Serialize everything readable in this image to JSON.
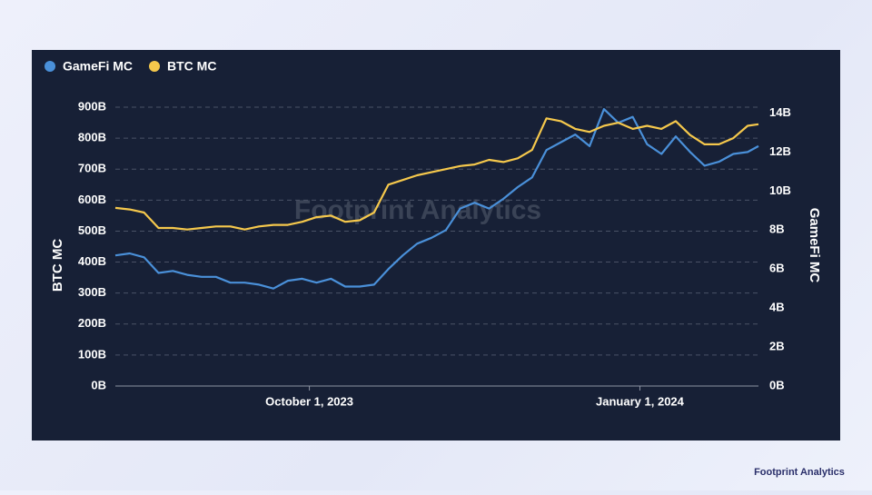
{
  "chart_data": {
    "type": "line",
    "watermark": "Footprint Analytics",
    "y_label": "BTC MC",
    "y2_label": "GameFi MC",
    "x": [
      "2023-08-08",
      "2023-08-12",
      "2023-08-16",
      "2023-08-20",
      "2023-08-24",
      "2023-08-28",
      "2023-09-01",
      "2023-09-05",
      "2023-09-09",
      "2023-09-13",
      "2023-09-17",
      "2023-09-21",
      "2023-09-25",
      "2023-09-29",
      "2023-10-03",
      "2023-10-07",
      "2023-10-11",
      "2023-10-15",
      "2023-10-19",
      "2023-10-23",
      "2023-10-27",
      "2023-10-31",
      "2023-11-04",
      "2023-11-08",
      "2023-11-12",
      "2023-11-16",
      "2023-11-20",
      "2023-11-24",
      "2023-11-28",
      "2023-12-02",
      "2023-12-06",
      "2023-12-10",
      "2023-12-14",
      "2023-12-18",
      "2023-12-22",
      "2023-12-26",
      "2023-12-30",
      "2024-01-03",
      "2024-01-07",
      "2024-01-11",
      "2024-01-15",
      "2024-01-19",
      "2024-01-23",
      "2024-01-27",
      "2024-01-31",
      "2024-02-03"
    ],
    "xlim": [
      "2023-08-08",
      "2024-02-03"
    ],
    "xticks": [
      {
        "value": "2023-10-01",
        "label": "October 1, 2023"
      },
      {
        "value": "2024-01-01",
        "label": "January 1, 2024"
      }
    ],
    "ylim": [
      0,
      900
    ],
    "yticks": [
      {
        "value": 0,
        "label": "0B"
      },
      {
        "value": 100,
        "label": "100B"
      },
      {
        "value": 200,
        "label": "200B"
      },
      {
        "value": 300,
        "label": "300B"
      },
      {
        "value": 400,
        "label": "400B"
      },
      {
        "value": 500,
        "label": "500B"
      },
      {
        "value": 600,
        "label": "600B"
      },
      {
        "value": 700,
        "label": "700B"
      },
      {
        "value": 800,
        "label": "800B"
      },
      {
        "value": 900,
        "label": "900B"
      }
    ],
    "y2lim": [
      0,
      14.3
    ],
    "y2ticks": [
      {
        "value": 0,
        "label": "0B"
      },
      {
        "value": 2,
        "label": "2B"
      },
      {
        "value": 4,
        "label": "4B"
      },
      {
        "value": 6,
        "label": "6B"
      },
      {
        "value": 8,
        "label": "8B"
      },
      {
        "value": 10,
        "label": "10B"
      },
      {
        "value": 12,
        "label": "12B"
      },
      {
        "value": 14,
        "label": "14B"
      }
    ],
    "grid": true,
    "legend": "top-left",
    "series": [
      {
        "name": "GameFi MC",
        "color": "#4a90d9",
        "axis": "y2",
        "values": [
          6.7,
          6.8,
          6.6,
          5.8,
          5.9,
          5.7,
          5.6,
          5.6,
          5.3,
          5.3,
          5.2,
          5.0,
          5.4,
          5.5,
          5.3,
          5.5,
          5.1,
          5.1,
          5.2,
          6.0,
          6.7,
          7.3,
          7.6,
          8.0,
          9.1,
          9.4,
          9.1,
          9.6,
          10.2,
          10.7,
          12.1,
          12.5,
          12.9,
          12.3,
          14.2,
          13.5,
          13.8,
          12.4,
          11.9,
          12.8,
          12.0,
          11.3,
          11.5,
          11.9,
          12.0,
          12.3
        ]
      },
      {
        "name": "BTC MC",
        "color": "#f5c84c",
        "values": [
          575,
          570,
          560,
          510,
          510,
          505,
          510,
          515,
          515,
          505,
          515,
          520,
          520,
          530,
          545,
          550,
          530,
          535,
          560,
          650,
          665,
          680,
          690,
          700,
          710,
          715,
          730,
          723,
          735,
          762,
          864,
          855,
          830,
          820,
          840,
          850,
          830,
          840,
          830,
          855,
          810,
          780,
          780,
          800,
          840,
          845
        ]
      }
    ]
  }
}
